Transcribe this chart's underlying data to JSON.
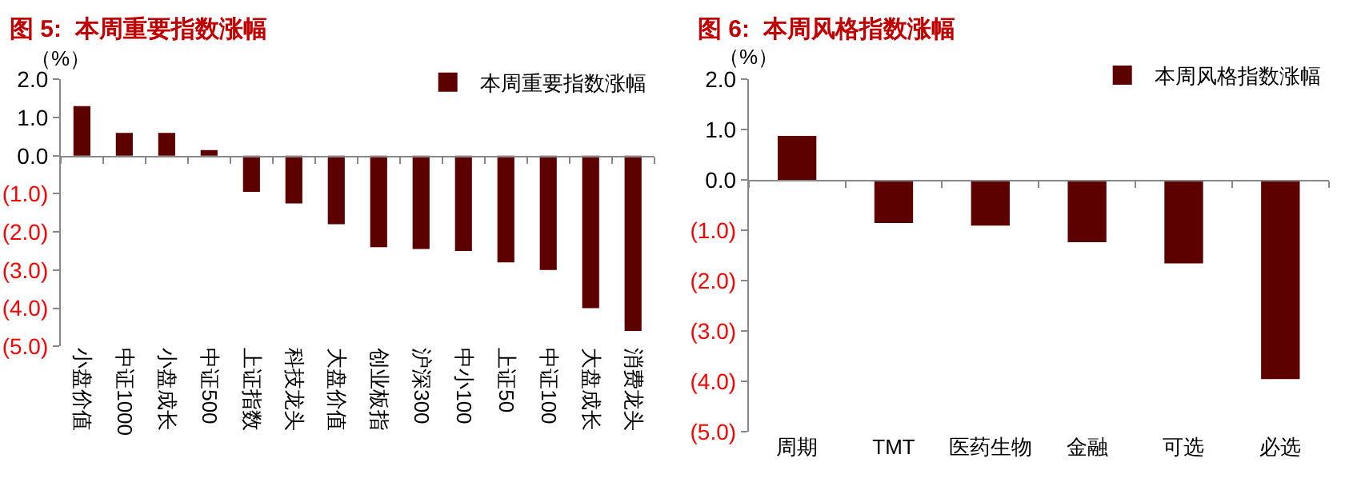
{
  "chart_data": [
    {
      "type": "bar",
      "title": "图 5:  本周重要指数涨幅",
      "ylabel": "（%）",
      "categories": [
        "小盘价值",
        "中证1000",
        "小盘成长",
        "中证500",
        "上证指数",
        "科技龙头",
        "大盘价值",
        "创业板指",
        "沪深300",
        "中小100",
        "上证50",
        "中证100",
        "大盘成长",
        "消费龙头"
      ],
      "series": [
        {
          "name": "本周重要指数涨幅",
          "color": "#5c0000",
          "values": [
            1.3,
            0.6,
            0.6,
            0.15,
            -0.95,
            -1.25,
            -1.8,
            -2.4,
            -2.45,
            -2.5,
            -2.8,
            -3.0,
            -4.0,
            -4.6
          ]
        }
      ],
      "ylim": [
        -5,
        2
      ],
      "yticks": [
        {
          "value": 2,
          "label": "2.0"
        },
        {
          "value": 1,
          "label": "1.0"
        },
        {
          "value": 0,
          "label": "0.0"
        },
        {
          "value": -1,
          "label": "(1.0)"
        },
        {
          "value": -2,
          "label": "(2.0)"
        },
        {
          "value": -3,
          "label": "(3.0)"
        },
        {
          "value": -4,
          "label": "(4.0)"
        },
        {
          "value": -5,
          "label": "(5.0)"
        }
      ],
      "legend": "top right"
    },
    {
      "type": "bar",
      "title": "图 6:  本周风格指数涨幅",
      "ylabel": "（%）",
      "categories": [
        "周期",
        "TMT",
        "医药生物",
        "金融",
        "可选",
        "必选"
      ],
      "series": [
        {
          "name": "本周风格指数涨幅",
          "color": "#5c0000",
          "values": [
            0.88,
            -0.85,
            -0.9,
            -1.23,
            -1.65,
            -3.95
          ]
        }
      ],
      "ylim": [
        -5,
        2
      ],
      "yticks": [
        {
          "value": 2,
          "label": "2.0"
        },
        {
          "value": 1,
          "label": "1.0"
        },
        {
          "value": 0,
          "label": "0.0"
        },
        {
          "value": -1,
          "label": "(1.0)"
        },
        {
          "value": -2,
          "label": "(2.0)"
        },
        {
          "value": -3,
          "label": "(3.0)"
        },
        {
          "value": -4,
          "label": "(4.0)"
        },
        {
          "value": -5,
          "label": "(5.0)"
        }
      ],
      "legend": "top right"
    }
  ]
}
